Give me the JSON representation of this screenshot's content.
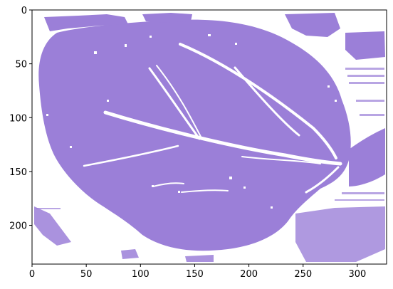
{
  "image": {
    "description_free": true,
    "fill_color": "#9b7fd8",
    "background_color": "#ffffff",
    "shape_kind": "leaf-like segmented mask"
  },
  "axes": {
    "x_ticks": [
      "0",
      "50",
      "100",
      "150",
      "200",
      "250",
      "300"
    ],
    "y_ticks": [
      "0",
      "50",
      "100",
      "150",
      "200"
    ],
    "x_range": [
      0,
      327
    ],
    "y_range": [
      0,
      236
    ],
    "y_inverted": true
  }
}
